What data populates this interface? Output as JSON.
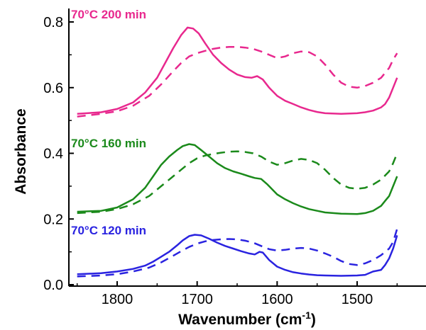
{
  "chart_data": {
    "type": "line",
    "xlabel_main": "Wavenumber (cm",
    "xlabel_sup": "-1",
    "xlabel_close": ")",
    "ylabel": "Absorbance",
    "xlim": [
      1850,
      1450
    ],
    "ylim": [
      0,
      0.82
    ],
    "x_reversed": true,
    "x_ticks": [
      1800,
      1700,
      1600,
      1500
    ],
    "y_ticks": [
      0.0,
      0.2,
      0.4,
      0.6,
      0.8
    ],
    "x_tick_labels": [
      "1800",
      "1700",
      "1600",
      "1500"
    ],
    "y_tick_labels": [
      "0.0",
      "0.2",
      "0.4",
      "0.6",
      "0.8"
    ],
    "grid": false,
    "labels": [
      {
        "text": "70°C 200 min",
        "color": "#e8288e"
      },
      {
        "text": "70°C 160 min",
        "color": "#1b8a1b"
      },
      {
        "text": "70°C 120 min",
        "color": "#2a23e0"
      }
    ],
    "series": [
      {
        "color": "#e8288e",
        "style": "solid",
        "x": [
          1850,
          1820,
          1800,
          1780,
          1765,
          1750,
          1740,
          1730,
          1720,
          1712,
          1705,
          1698,
          1690,
          1680,
          1670,
          1660,
          1650,
          1640,
          1632,
          1625,
          1618,
          1610,
          1600,
          1590,
          1580,
          1570,
          1560,
          1550,
          1540,
          1520,
          1500,
          1490,
          1480,
          1470,
          1465,
          1460,
          1455,
          1450
        ],
        "y": [
          0.52,
          0.525,
          0.535,
          0.555,
          0.585,
          0.63,
          0.675,
          0.72,
          0.76,
          0.783,
          0.78,
          0.765,
          0.735,
          0.7,
          0.675,
          0.655,
          0.64,
          0.632,
          0.63,
          0.635,
          0.625,
          0.6,
          0.575,
          0.56,
          0.55,
          0.54,
          0.532,
          0.526,
          0.522,
          0.52,
          0.522,
          0.525,
          0.53,
          0.54,
          0.55,
          0.57,
          0.6,
          0.63
        ]
      },
      {
        "color": "#e8288e",
        "style": "dashed",
        "x": [
          1850,
          1820,
          1800,
          1780,
          1760,
          1745,
          1730,
          1720,
          1710,
          1700,
          1690,
          1680,
          1670,
          1660,
          1650,
          1640,
          1630,
          1620,
          1610,
          1600,
          1590,
          1580,
          1570,
          1560,
          1550,
          1540,
          1530,
          1520,
          1510,
          1500,
          1490,
          1480,
          1470,
          1460,
          1455,
          1450
        ],
        "y": [
          0.512,
          0.52,
          0.528,
          0.545,
          0.575,
          0.61,
          0.65,
          0.675,
          0.695,
          0.705,
          0.712,
          0.718,
          0.722,
          0.724,
          0.724,
          0.722,
          0.718,
          0.71,
          0.7,
          0.69,
          0.695,
          0.705,
          0.71,
          0.708,
          0.695,
          0.67,
          0.64,
          0.615,
          0.603,
          0.6,
          0.605,
          0.615,
          0.63,
          0.66,
          0.685,
          0.705
        ]
      },
      {
        "color": "#1b8a1b",
        "style": "solid",
        "x": [
          1850,
          1820,
          1800,
          1780,
          1765,
          1755,
          1745,
          1735,
          1725,
          1718,
          1710,
          1703,
          1695,
          1685,
          1675,
          1665,
          1655,
          1645,
          1635,
          1628,
          1620,
          1612,
          1600,
          1590,
          1580,
          1570,
          1560,
          1550,
          1540,
          1520,
          1500,
          1490,
          1480,
          1470,
          1465,
          1460,
          1455,
          1450
        ],
        "y": [
          0.222,
          0.225,
          0.235,
          0.26,
          0.295,
          0.33,
          0.365,
          0.39,
          0.41,
          0.422,
          0.428,
          0.425,
          0.41,
          0.39,
          0.37,
          0.355,
          0.345,
          0.338,
          0.33,
          0.325,
          0.322,
          0.305,
          0.275,
          0.26,
          0.248,
          0.238,
          0.23,
          0.225,
          0.22,
          0.216,
          0.215,
          0.218,
          0.225,
          0.24,
          0.255,
          0.27,
          0.3,
          0.33
        ]
      },
      {
        "color": "#1b8a1b",
        "style": "dashed",
        "x": [
          1850,
          1820,
          1800,
          1780,
          1760,
          1745,
          1730,
          1720,
          1710,
          1700,
          1690,
          1680,
          1670,
          1660,
          1650,
          1640,
          1630,
          1620,
          1610,
          1600,
          1590,
          1580,
          1570,
          1560,
          1550,
          1540,
          1530,
          1520,
          1510,
          1500,
          1490,
          1480,
          1470,
          1460,
          1455,
          1450
        ],
        "y": [
          0.218,
          0.222,
          0.23,
          0.245,
          0.27,
          0.3,
          0.33,
          0.35,
          0.37,
          0.385,
          0.393,
          0.398,
          0.402,
          0.405,
          0.406,
          0.404,
          0.4,
          0.39,
          0.375,
          0.365,
          0.37,
          0.378,
          0.383,
          0.38,
          0.37,
          0.35,
          0.325,
          0.305,
          0.295,
          0.292,
          0.295,
          0.305,
          0.32,
          0.345,
          0.37,
          0.4
        ]
      },
      {
        "color": "#2a23e0",
        "style": "solid",
        "x": [
          1850,
          1820,
          1800,
          1780,
          1765,
          1755,
          1745,
          1735,
          1725,
          1718,
          1710,
          1703,
          1695,
          1685,
          1675,
          1665,
          1655,
          1645,
          1635,
          1628,
          1622,
          1618,
          1610,
          1600,
          1590,
          1580,
          1570,
          1560,
          1550,
          1540,
          1520,
          1500,
          1490,
          1480,
          1470,
          1465,
          1460,
          1455,
          1450
        ],
        "y": [
          0.032,
          0.035,
          0.04,
          0.048,
          0.058,
          0.07,
          0.085,
          0.1,
          0.12,
          0.135,
          0.148,
          0.152,
          0.15,
          0.14,
          0.128,
          0.118,
          0.11,
          0.102,
          0.095,
          0.092,
          0.1,
          0.098,
          0.075,
          0.055,
          0.045,
          0.038,
          0.034,
          0.031,
          0.029,
          0.028,
          0.027,
          0.028,
          0.03,
          0.04,
          0.045,
          0.06,
          0.08,
          0.11,
          0.15
        ]
      },
      {
        "color": "#2a23e0",
        "style": "dashed",
        "x": [
          1850,
          1820,
          1800,
          1780,
          1760,
          1745,
          1730,
          1720,
          1710,
          1700,
          1690,
          1680,
          1670,
          1660,
          1650,
          1640,
          1630,
          1620,
          1610,
          1600,
          1590,
          1580,
          1570,
          1560,
          1550,
          1540,
          1530,
          1520,
          1510,
          1500,
          1490,
          1480,
          1470,
          1460,
          1455,
          1450
        ],
        "y": [
          0.025,
          0.028,
          0.032,
          0.04,
          0.052,
          0.068,
          0.088,
          0.102,
          0.115,
          0.125,
          0.132,
          0.136,
          0.138,
          0.139,
          0.138,
          0.134,
          0.128,
          0.118,
          0.108,
          0.104,
          0.106,
          0.11,
          0.112,
          0.11,
          0.104,
          0.095,
          0.085,
          0.072,
          0.063,
          0.06,
          0.065,
          0.075,
          0.09,
          0.11,
          0.13,
          0.17
        ]
      }
    ]
  }
}
